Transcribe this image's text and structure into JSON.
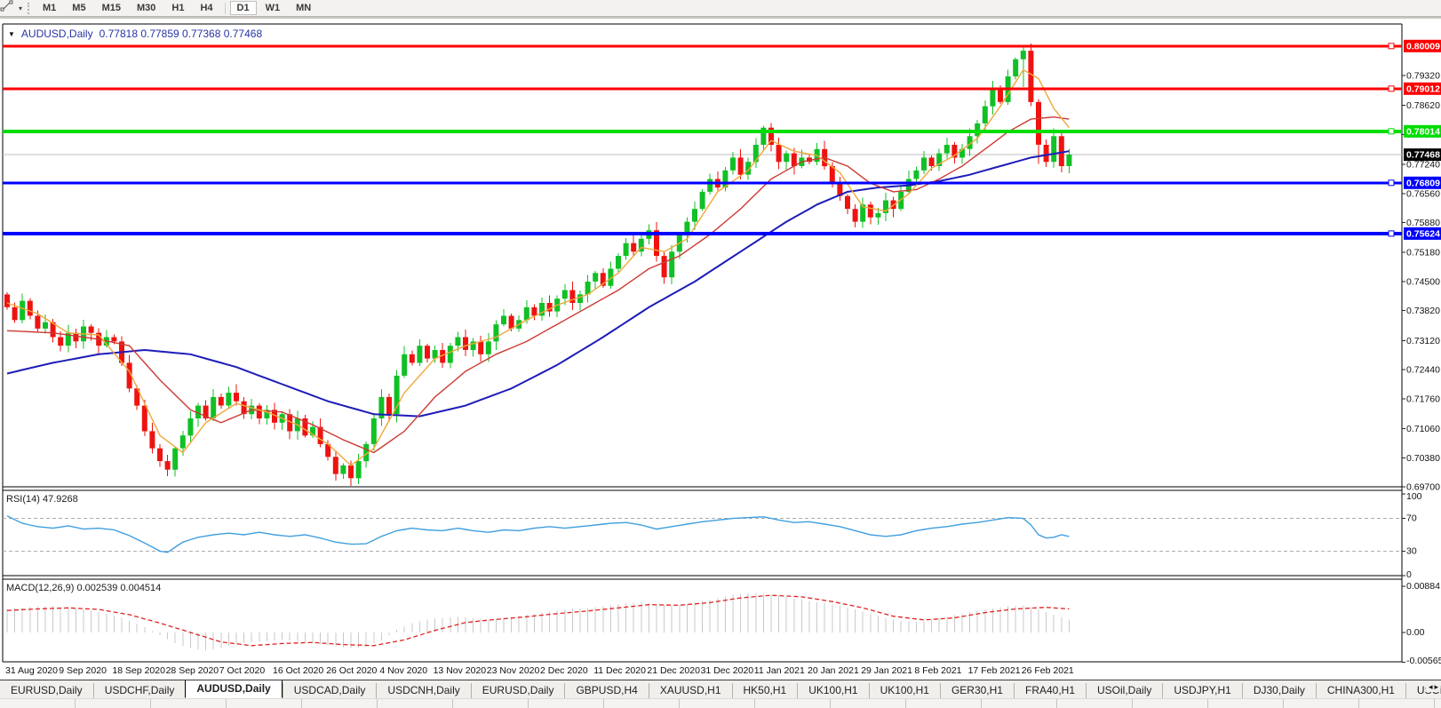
{
  "toolbar": {
    "tool_icon": "trendline-tool",
    "timeframes": [
      {
        "label": "M1",
        "active": false
      },
      {
        "label": "M5",
        "active": false
      },
      {
        "label": "M15",
        "active": false
      },
      {
        "label": "M30",
        "active": false
      },
      {
        "label": "H1",
        "active": false
      },
      {
        "label": "H4",
        "active": false
      },
      {
        "label": "D1",
        "active": true
      },
      {
        "label": "W1",
        "active": false
      },
      {
        "label": "MN",
        "active": false
      }
    ]
  },
  "chart": {
    "title": {
      "symbol": "AUDUSD,Daily",
      "ohlc": "0.77818 0.77859 0.77368 0.77468"
    },
    "price_axis_ticks": [
      "0.79320",
      "0.78620",
      "0.77940",
      "0.77240",
      "0.76560",
      "0.75880",
      "0.75180",
      "0.74500",
      "0.73820",
      "0.73120",
      "0.72440",
      "0.71760",
      "0.71060",
      "0.70380",
      "0.69700"
    ],
    "hlines": [
      {
        "price": 0.80009,
        "label": "0.80009",
        "color": "#fe0000",
        "width": 3
      },
      {
        "price": 0.79012,
        "label": "0.79012",
        "color": "#fe0000",
        "width": 3
      },
      {
        "price": 0.78014,
        "label": "0.78014",
        "color": "#00dd00",
        "width": 4
      },
      {
        "price": 0.76809,
        "label": "0.76809",
        "color": "#0000ff",
        "width": 3
      },
      {
        "price": 0.75624,
        "label": "0.75624",
        "color": "#0000ff",
        "width": 4
      }
    ],
    "current_price": {
      "price": 0.77468,
      "label": "0.77468",
      "badge_color": "#000000"
    },
    "dates": [
      "31 Aug 2020",
      "9 Sep 2020",
      "18 Sep 2020",
      "28 Sep 2020",
      "7 Oct 2020",
      "16 Oct 2020",
      "26 Oct 2020",
      "4 Nov 2020",
      "13 Nov 2020",
      "23 Nov 2020",
      "2 Dec 2020",
      "11 Dec 2020",
      "21 Dec 2020",
      "31 Dec 2020",
      "11 Jan 2021",
      "20 Jan 2021",
      "29 Jan 2021",
      "8 Feb 2021",
      "17 Feb 2021",
      "26 Feb 2021"
    ],
    "rsi": {
      "label": "RSI(14) 47.9268",
      "levels": [
        70,
        30
      ],
      "ticks": [
        {
          "v": 100,
          "t": "100"
        },
        {
          "v": 70,
          "t": "70"
        },
        {
          "v": 30,
          "t": "30"
        },
        {
          "v": 0,
          "t": "0"
        }
      ]
    },
    "macd": {
      "label": "MACD(12,26,9) 0.002539 0.004514",
      "ticks": [
        {
          "v": 0.00884,
          "t": "0.00884"
        },
        {
          "v": 0,
          "t": "0.00"
        },
        {
          "v": -0.005651,
          "t": "-0.005651"
        }
      ]
    }
  },
  "colors": {
    "bull": "#11c026",
    "bear": "#ee1310",
    "ma_fast": "#efa83a",
    "ma_mid": "#cc3a33",
    "ma_slow": "#1d1db8",
    "rsi_line": "#3f9fe0",
    "rsi_level": "#adadad",
    "macd_hist": "#c9c9c9",
    "macd_signal": "#e02222",
    "current_line": "#bcbcbc",
    "axis_text": "#111111",
    "border": "#000000",
    "title_text": "#2733a3"
  },
  "chart_data": {
    "type": "candlestick-with-indicators",
    "symbol": "AUDUSD",
    "period": "Daily",
    "candles": {
      "first_open": 0.742,
      "closes": [
        0.739,
        0.736,
        0.7405,
        0.737,
        0.734,
        0.7355,
        0.732,
        0.73,
        0.733,
        0.731,
        0.7345,
        0.733,
        0.73,
        0.732,
        0.731,
        0.726,
        0.72,
        0.716,
        0.71,
        0.706,
        0.703,
        0.701,
        0.706,
        0.709,
        0.713,
        0.716,
        0.713,
        0.718,
        0.716,
        0.719,
        0.717,
        0.714,
        0.716,
        0.713,
        0.715,
        0.712,
        0.714,
        0.71,
        0.713,
        0.709,
        0.711,
        0.707,
        0.704,
        0.7,
        0.702,
        0.699,
        0.703,
        0.707,
        0.713,
        0.718,
        0.714,
        0.723,
        0.728,
        0.726,
        0.73,
        0.727,
        0.729,
        0.726,
        0.73,
        0.732,
        0.729,
        0.731,
        0.728,
        0.731,
        0.735,
        0.737,
        0.734,
        0.736,
        0.739,
        0.737,
        0.74,
        0.738,
        0.741,
        0.743,
        0.74,
        0.742,
        0.745,
        0.747,
        0.744,
        0.748,
        0.751,
        0.754,
        0.752,
        0.755,
        0.757,
        0.751,
        0.746,
        0.752,
        0.756,
        0.759,
        0.762,
        0.766,
        0.769,
        0.767,
        0.771,
        0.774,
        0.77,
        0.773,
        0.777,
        0.781,
        0.777,
        0.773,
        0.775,
        0.772,
        0.774,
        0.773,
        0.776,
        0.772,
        0.768,
        0.765,
        0.762,
        0.759,
        0.763,
        0.76,
        0.761,
        0.764,
        0.762,
        0.766,
        0.769,
        0.771,
        0.774,
        0.772,
        0.775,
        0.777,
        0.774,
        0.776,
        0.779,
        0.782,
        0.786,
        0.79,
        0.787,
        0.793,
        0.797,
        0.799,
        0.787,
        0.777,
        0.773,
        0.779,
        0.772,
        0.7747
      ],
      "specials": {
        "43": {
          "l": 0.6985
        },
        "45": {
          "l": 0.6972
        },
        "133": {
          "h": 0.8001,
          "l": 0.7905
        },
        "134": {
          "l": 0.786
        },
        "135": {
          "l": 0.7725
        }
      }
    },
    "ma_fast_waypoints": [
      [
        0,
        0.74
      ],
      [
        4,
        0.7375
      ],
      [
        8,
        0.733
      ],
      [
        12,
        0.7325
      ],
      [
        16,
        0.724
      ],
      [
        20,
        0.709
      ],
      [
        23,
        0.705
      ],
      [
        26,
        0.712
      ],
      [
        30,
        0.7165
      ],
      [
        34,
        0.7145
      ],
      [
        38,
        0.7115
      ],
      [
        42,
        0.707
      ],
      [
        45,
        0.702
      ],
      [
        48,
        0.706
      ],
      [
        52,
        0.719
      ],
      [
        56,
        0.727
      ],
      [
        60,
        0.73
      ],
      [
        64,
        0.732
      ],
      [
        68,
        0.736
      ],
      [
        72,
        0.7395
      ],
      [
        76,
        0.742
      ],
      [
        80,
        0.747
      ],
      [
        83,
        0.753
      ],
      [
        86,
        0.752
      ],
      [
        89,
        0.755
      ],
      [
        93,
        0.766
      ],
      [
        97,
        0.771
      ],
      [
        100,
        0.778
      ],
      [
        103,
        0.7755
      ],
      [
        106,
        0.7745
      ],
      [
        109,
        0.7705
      ],
      [
        112,
        0.7625
      ],
      [
        115,
        0.7615
      ],
      [
        118,
        0.7655
      ],
      [
        121,
        0.7715
      ],
      [
        124,
        0.7745
      ],
      [
        127,
        0.7785
      ],
      [
        130,
        0.786
      ],
      [
        133,
        0.7945
      ],
      [
        135,
        0.7925
      ],
      [
        137,
        0.7855
      ],
      [
        139,
        0.781
      ]
    ],
    "ma_mid_waypoints": [
      [
        0,
        0.7335
      ],
      [
        6,
        0.733
      ],
      [
        12,
        0.7315
      ],
      [
        16,
        0.73
      ],
      [
        20,
        0.722
      ],
      [
        24,
        0.715
      ],
      [
        28,
        0.712
      ],
      [
        32,
        0.715
      ],
      [
        36,
        0.7145
      ],
      [
        40,
        0.7115
      ],
      [
        44,
        0.708
      ],
      [
        48,
        0.705
      ],
      [
        52,
        0.71
      ],
      [
        56,
        0.718
      ],
      [
        60,
        0.724
      ],
      [
        64,
        0.728
      ],
      [
        68,
        0.731
      ],
      [
        72,
        0.735
      ],
      [
        76,
        0.739
      ],
      [
        80,
        0.743
      ],
      [
        84,
        0.748
      ],
      [
        88,
        0.751
      ],
      [
        92,
        0.756
      ],
      [
        96,
        0.762
      ],
      [
        100,
        0.769
      ],
      [
        104,
        0.773
      ],
      [
        107,
        0.774
      ],
      [
        110,
        0.772
      ],
      [
        113,
        0.768
      ],
      [
        116,
        0.766
      ],
      [
        119,
        0.7665
      ],
      [
        122,
        0.769
      ],
      [
        125,
        0.772
      ],
      [
        128,
        0.776
      ],
      [
        131,
        0.78
      ],
      [
        134,
        0.783
      ],
      [
        137,
        0.7835
      ],
      [
        139,
        0.783
      ]
    ],
    "ma_slow_waypoints": [
      [
        0,
        0.7235
      ],
      [
        6,
        0.726
      ],
      [
        12,
        0.728
      ],
      [
        18,
        0.729
      ],
      [
        24,
        0.728
      ],
      [
        30,
        0.725
      ],
      [
        36,
        0.721
      ],
      [
        42,
        0.717
      ],
      [
        48,
        0.714
      ],
      [
        54,
        0.7135
      ],
      [
        60,
        0.716
      ],
      [
        66,
        0.72
      ],
      [
        72,
        0.7255
      ],
      [
        78,
        0.732
      ],
      [
        84,
        0.739
      ],
      [
        90,
        0.745
      ],
      [
        96,
        0.752
      ],
      [
        102,
        0.759
      ],
      [
        106,
        0.763
      ],
      [
        110,
        0.766
      ],
      [
        114,
        0.767
      ],
      [
        118,
        0.7675
      ],
      [
        122,
        0.7685
      ],
      [
        126,
        0.77
      ],
      [
        130,
        0.772
      ],
      [
        134,
        0.774
      ],
      [
        139,
        0.7755
      ]
    ],
    "rsi_waypoints": [
      [
        0,
        73
      ],
      [
        2,
        64
      ],
      [
        4,
        60
      ],
      [
        6,
        58
      ],
      [
        8,
        61
      ],
      [
        10,
        57
      ],
      [
        12,
        58
      ],
      [
        14,
        56
      ],
      [
        16,
        49
      ],
      [
        18,
        40
      ],
      [
        20,
        30
      ],
      [
        21,
        28.5
      ],
      [
        23,
        41
      ],
      [
        25,
        47
      ],
      [
        27,
        50
      ],
      [
        29,
        52
      ],
      [
        31,
        50
      ],
      [
        33,
        53
      ],
      [
        35,
        50
      ],
      [
        37,
        48
      ],
      [
        39,
        50
      ],
      [
        41,
        46
      ],
      [
        43,
        41
      ],
      [
        45,
        38.5
      ],
      [
        47,
        39
      ],
      [
        49,
        48
      ],
      [
        51,
        55
      ],
      [
        53,
        58
      ],
      [
        55,
        56
      ],
      [
        57,
        55
      ],
      [
        59,
        58
      ],
      [
        61,
        55
      ],
      [
        63,
        53
      ],
      [
        65,
        56
      ],
      [
        67,
        55
      ],
      [
        69,
        58
      ],
      [
        71,
        60
      ],
      [
        73,
        58
      ],
      [
        75,
        60
      ],
      [
        77,
        62
      ],
      [
        79,
        64
      ],
      [
        81,
        65
      ],
      [
        83,
        62
      ],
      [
        85,
        57
      ],
      [
        87,
        60
      ],
      [
        89,
        63
      ],
      [
        91,
        66
      ],
      [
        93,
        68
      ],
      [
        95,
        70
      ],
      [
        97,
        71
      ],
      [
        99,
        72
      ],
      [
        101,
        68
      ],
      [
        103,
        65
      ],
      [
        105,
        66
      ],
      [
        107,
        63
      ],
      [
        109,
        60
      ],
      [
        111,
        55
      ],
      [
        113,
        50
      ],
      [
        115,
        48
      ],
      [
        117,
        50
      ],
      [
        119,
        55
      ],
      [
        121,
        58
      ],
      [
        123,
        60
      ],
      [
        125,
        63
      ],
      [
        127,
        65
      ],
      [
        129,
        68
      ],
      [
        131,
        71
      ],
      [
        133,
        70
      ],
      [
        134,
        62
      ],
      [
        135,
        50
      ],
      [
        136,
        46
      ],
      [
        137,
        47
      ],
      [
        138,
        50
      ],
      [
        139,
        47.9
      ]
    ],
    "macd_hist_waypoints": [
      [
        0,
        0.0045
      ],
      [
        3,
        0.0049
      ],
      [
        6,
        0.0051
      ],
      [
        9,
        0.0046
      ],
      [
        12,
        0.004
      ],
      [
        15,
        0.0028
      ],
      [
        18,
        0.001
      ],
      [
        20,
        -0.0005
      ],
      [
        22,
        -0.002
      ],
      [
        24,
        -0.003
      ],
      [
        26,
        -0.0035
      ],
      [
        28,
        -0.003
      ],
      [
        30,
        -0.0022
      ],
      [
        33,
        -0.0017
      ],
      [
        36,
        -0.0014
      ],
      [
        39,
        -0.0018
      ],
      [
        42,
        -0.0025
      ],
      [
        45,
        -0.003
      ],
      [
        47,
        -0.0027
      ],
      [
        49,
        -0.0015
      ],
      [
        51,
        0.0005
      ],
      [
        53,
        0.0018
      ],
      [
        55,
        0.0025
      ],
      [
        57,
        0.0028
      ],
      [
        59,
        0.003
      ],
      [
        61,
        0.0027
      ],
      [
        63,
        0.0025
      ],
      [
        65,
        0.0028
      ],
      [
        67,
        0.0032
      ],
      [
        69,
        0.0036
      ],
      [
        71,
        0.004
      ],
      [
        73,
        0.0044
      ],
      [
        75,
        0.0046
      ],
      [
        77,
        0.0048
      ],
      [
        79,
        0.0052
      ],
      [
        81,
        0.0056
      ],
      [
        83,
        0.0058
      ],
      [
        85,
        0.0054
      ],
      [
        87,
        0.0051
      ],
      [
        89,
        0.0054
      ],
      [
        91,
        0.006
      ],
      [
        93,
        0.0066
      ],
      [
        95,
        0.0072
      ],
      [
        97,
        0.0075
      ],
      [
        99,
        0.0074
      ],
      [
        101,
        0.007
      ],
      [
        103,
        0.0065
      ],
      [
        105,
        0.006
      ],
      [
        107,
        0.0056
      ],
      [
        109,
        0.0051
      ],
      [
        111,
        0.0044
      ],
      [
        113,
        0.0036
      ],
      [
        115,
        0.0028
      ],
      [
        117,
        0.0022
      ],
      [
        119,
        0.002
      ],
      [
        121,
        0.0024
      ],
      [
        123,
        0.003
      ],
      [
        125,
        0.0036
      ],
      [
        127,
        0.0042
      ],
      [
        129,
        0.0046
      ],
      [
        131,
        0.005
      ],
      [
        133,
        0.0052
      ],
      [
        135,
        0.0044
      ],
      [
        137,
        0.0034
      ],
      [
        139,
        0.0025
      ]
    ],
    "macd_signal_waypoints": [
      [
        0,
        0.0042
      ],
      [
        4,
        0.0045
      ],
      [
        8,
        0.0047
      ],
      [
        12,
        0.0044
      ],
      [
        16,
        0.0034
      ],
      [
        20,
        0.0018
      ],
      [
        24,
        0.0
      ],
      [
        28,
        -0.0018
      ],
      [
        32,
        -0.0025
      ],
      [
        36,
        -0.0021
      ],
      [
        40,
        -0.0019
      ],
      [
        44,
        -0.0023
      ],
      [
        48,
        -0.0025
      ],
      [
        52,
        -0.0014
      ],
      [
        56,
        0.0004
      ],
      [
        60,
        0.0019
      ],
      [
        64,
        0.0025
      ],
      [
        68,
        0.003
      ],
      [
        72,
        0.0036
      ],
      [
        76,
        0.0041
      ],
      [
        80,
        0.0047
      ],
      [
        84,
        0.0053
      ],
      [
        88,
        0.0052
      ],
      [
        92,
        0.0057
      ],
      [
        96,
        0.0066
      ],
      [
        100,
        0.0071
      ],
      [
        104,
        0.0068
      ],
      [
        108,
        0.0059
      ],
      [
        112,
        0.0047
      ],
      [
        116,
        0.0031
      ],
      [
        120,
        0.0024
      ],
      [
        124,
        0.0028
      ],
      [
        128,
        0.0038
      ],
      [
        132,
        0.0045
      ],
      [
        136,
        0.0048
      ],
      [
        139,
        0.0045
      ]
    ]
  },
  "tabs": {
    "items": [
      {
        "label": "EURUSD,Daily",
        "active": false
      },
      {
        "label": "USDCHF,Daily",
        "active": false
      },
      {
        "label": "AUDUSD,Daily",
        "active": true
      },
      {
        "label": "USDCAD,Daily",
        "active": false
      },
      {
        "label": "USDCNH,Daily",
        "active": false
      },
      {
        "label": "EURUSD,Daily",
        "active": false
      },
      {
        "label": "GBPUSD,H4",
        "active": false
      },
      {
        "label": "XAUUSD,H1",
        "active": false
      },
      {
        "label": "HK50,H1",
        "active": false
      },
      {
        "label": "UK100,H1",
        "active": false
      },
      {
        "label": "UK100,H1",
        "active": false
      },
      {
        "label": "GER30,H1",
        "active": false
      },
      {
        "label": "FRA40,H1",
        "active": false
      },
      {
        "label": "USOil,Daily",
        "active": false
      },
      {
        "label": "USDJPY,H1",
        "active": false
      },
      {
        "label": "DJ30,Daily",
        "active": false
      },
      {
        "label": "CHINA300,H1",
        "active": false
      },
      {
        "label": "USOil,",
        "active": false
      }
    ],
    "scroll_left": "◂",
    "scroll_right": "▸"
  }
}
